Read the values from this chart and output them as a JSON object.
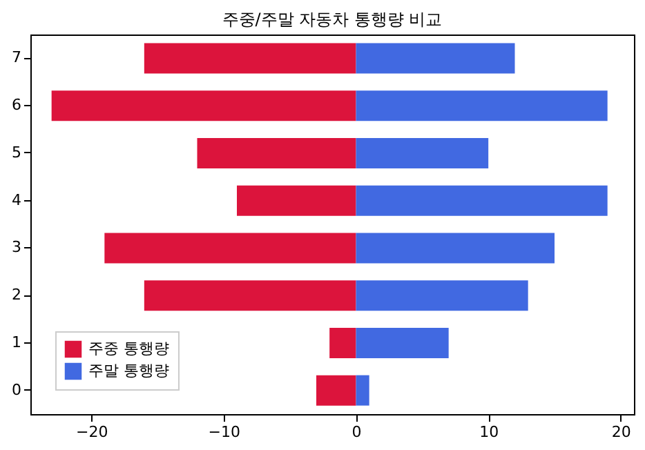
{
  "chart_data": {
    "type": "bar",
    "orientation": "horizontal",
    "title": "주중/주말 자동차 통행량 비교",
    "categories": [
      "7",
      "6",
      "5",
      "4",
      "3",
      "2",
      "1",
      "0"
    ],
    "series": [
      {
        "name": "주중 통행량",
        "color": "#dc143c",
        "values": [
          -16,
          -23,
          -12,
          -9,
          -19,
          -16,
          -2,
          -3
        ]
      },
      {
        "name": "주말 통행량",
        "color": "#4169e1",
        "values": [
          12,
          19,
          10,
          19,
          15,
          13,
          7,
          1
        ]
      }
    ],
    "xlim": [
      -24.6,
      21
    ],
    "xticks": [
      -20,
      -10,
      0,
      10,
      20
    ],
    "grid": false,
    "stacked": true,
    "legend": "bottom left"
  }
}
